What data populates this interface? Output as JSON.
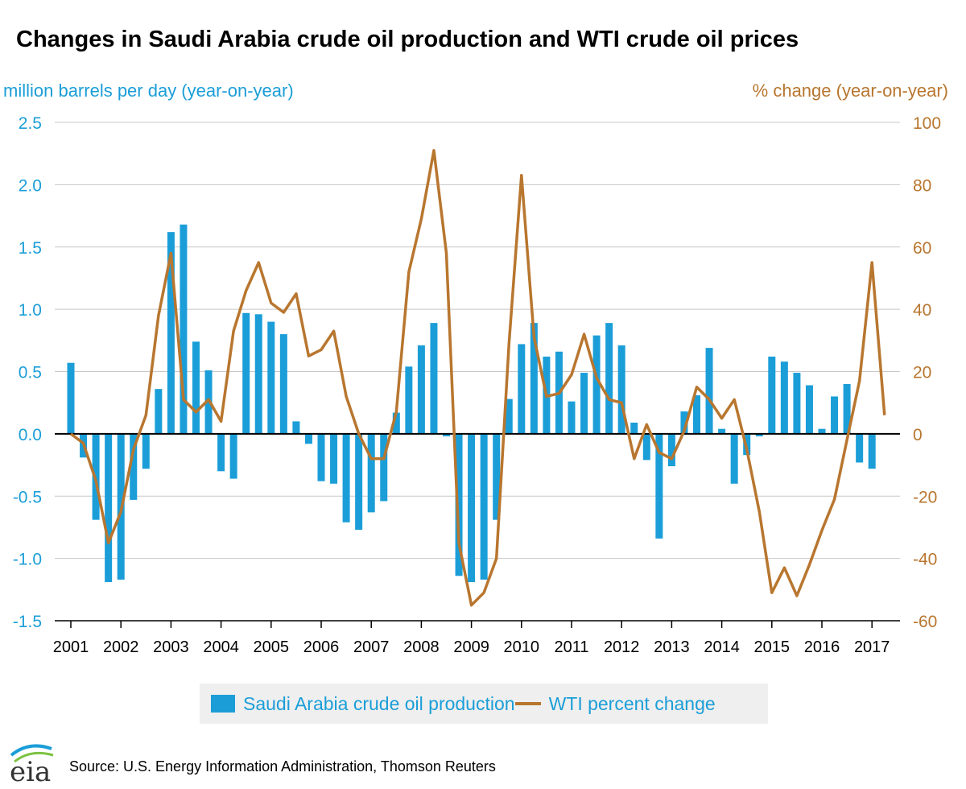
{
  "title": "Changes in Saudi Arabia crude oil production and WTI crude oil prices",
  "source": "Source: U.S. Energy Information Administration, Thomson Reuters",
  "logo_text": "eia",
  "colors": {
    "bars": "#1b9ed8",
    "line": "#b8762f",
    "left_axis": "#1b9ed8",
    "right_axis": "#b8762f"
  },
  "chart_data": {
    "type": "bar",
    "ylabel": "million barrels per day (year-on-year)",
    "y2label": "% change (year-on-year)",
    "ylim": [
      -1.5,
      2.5
    ],
    "y2lim": [
      -60,
      100
    ],
    "yticks": [
      "2.5",
      "2.0",
      "1.5",
      "1.0",
      "0.5",
      "0.0",
      "-0.5",
      "-1.0",
      "-1.5"
    ],
    "y2ticks": [
      "100",
      "80",
      "60",
      "40",
      "20",
      "0",
      "-20",
      "-40",
      "-60"
    ],
    "xticks": [
      "2001",
      "2002",
      "2003",
      "2004",
      "2005",
      "2006",
      "2007",
      "2008",
      "2009",
      "2010",
      "2011",
      "2012",
      "2013",
      "2014",
      "2015",
      "2016",
      "2017"
    ],
    "grid": true,
    "legend_position": "bottom",
    "series": [
      {
        "name": "Saudi Arabia crude oil production",
        "type": "bar",
        "axis": "left",
        "values": [
          0.57,
          -0.19,
          -0.69,
          -1.19,
          -1.17,
          -0.53,
          -0.28,
          0.36,
          1.62,
          1.68,
          0.74,
          0.51,
          -0.3,
          -0.36,
          0.97,
          0.96,
          0.9,
          0.8,
          0.1,
          -0.08,
          -0.38,
          -0.4,
          -0.71,
          -0.77,
          -0.63,
          -0.54,
          0.17,
          0.54,
          0.71,
          0.89,
          -0.02,
          -1.14,
          -1.19,
          -1.17,
          -0.69,
          0.28,
          0.72,
          0.89,
          0.62,
          0.66,
          0.26,
          0.49,
          0.79,
          0.89,
          0.71,
          0.09,
          -0.21,
          -0.84,
          -0.26,
          0.18,
          0.31,
          0.69,
          0.04,
          -0.4,
          -0.17,
          -0.02,
          0.62,
          0.58,
          0.49,
          0.39,
          0.04,
          0.3,
          0.4,
          -0.23,
          -0.28
        ]
      },
      {
        "name": "WTI percent change",
        "type": "line",
        "axis": "right",
        "values": [
          0,
          -3,
          -15,
          -35,
          -25,
          -5,
          6,
          38,
          58,
          11,
          7,
          11,
          4,
          33,
          46,
          55,
          42,
          39,
          45,
          25,
          27,
          33,
          12,
          0,
          -8,
          -8,
          7,
          52,
          69,
          91,
          58,
          -35,
          -55,
          -51,
          -40,
          29,
          83,
          31,
          12,
          13,
          19,
          32,
          18,
          11,
          10,
          -8,
          3,
          -6,
          -8,
          1,
          15,
          11,
          5,
          11,
          -5,
          -25,
          -51,
          -43,
          -52,
          -42,
          -31,
          -21,
          -2,
          17,
          55,
          6
        ]
      }
    ]
  },
  "legend": {
    "bar_label": "Saudi Arabia crude oil production",
    "line_label": "WTI percent change"
  }
}
